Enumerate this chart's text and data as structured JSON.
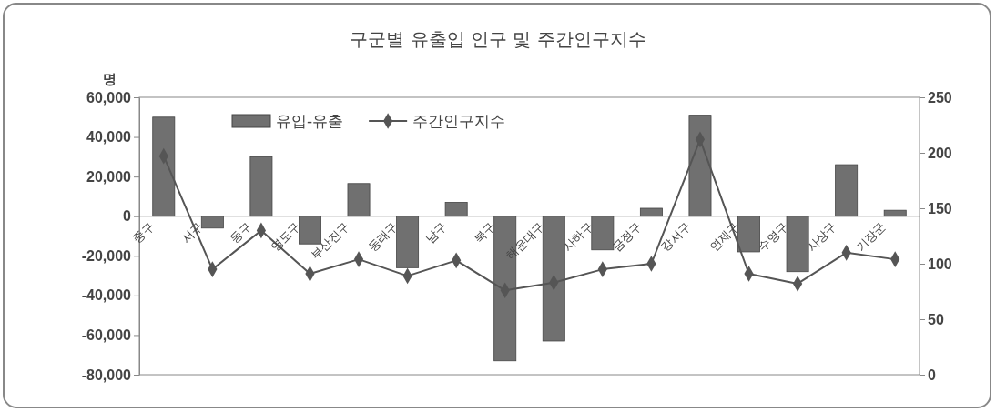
{
  "chart_data": {
    "type": "bar",
    "title": "구군별 유출입 인구 및 주간인구지수",
    "ylabel": "명",
    "categories": [
      "중구",
      "서구",
      "동구",
      "영도구",
      "부산진구",
      "동래구",
      "남구",
      "북구",
      "해운대구",
      "사하구",
      "금정구",
      "강서구",
      "연제구",
      "수영구",
      "사상구",
      "기장군"
    ],
    "series": [
      {
        "name": "유입-유출",
        "color": "#707070",
        "values": [
          50000,
          -6000,
          30000,
          -14000,
          16500,
          -26000,
          7000,
          -73000,
          -63000,
          -17000,
          4000,
          51000,
          -18000,
          -28000,
          26000,
          3000
        ]
      },
      {
        "name": "주간인구지수",
        "type": "line",
        "axis": "y2",
        "color": "#555555",
        "marker": "diamond",
        "values": [
          197,
          95,
          130,
          91,
          104,
          89,
          103,
          76,
          83,
          95,
          100,
          212,
          91,
          82,
          110,
          104
        ]
      }
    ],
    "ylim": [
      -80000,
      60000
    ],
    "yticks": [
      {
        "value": -80000,
        "label": "-80,000"
      },
      {
        "value": -60000,
        "label": "-60,000"
      },
      {
        "value": -40000,
        "label": "-40,000"
      },
      {
        "value": -20000,
        "label": "-20,000"
      },
      0,
      {
        "value": 20000,
        "label": "20,000"
      },
      {
        "value": 40000,
        "label": "40,000"
      },
      {
        "value": 60000,
        "label": "60,000"
      }
    ],
    "y2lim": [
      0,
      250
    ],
    "y2ticks": [
      0,
      50,
      100,
      150,
      200,
      250
    ],
    "legend": "top",
    "grid": false
  }
}
